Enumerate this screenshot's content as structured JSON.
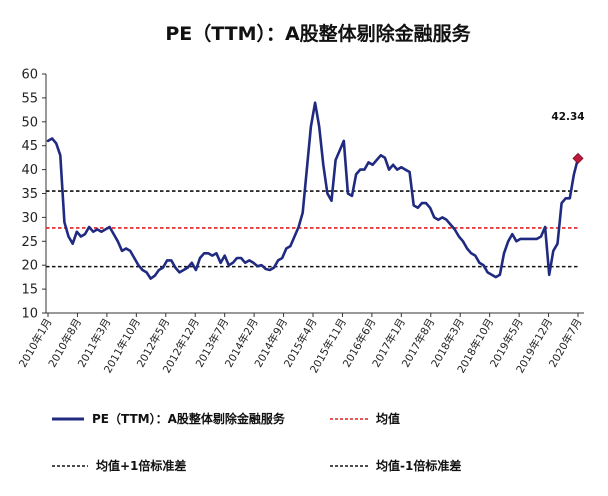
{
  "chart_data": {
    "type": "line",
    "title": "PE（TTM）：A股整体剔除金融服务",
    "xlabel": "",
    "ylabel": "",
    "ylim": [
      10,
      60
    ],
    "yticks": [
      "10",
      "15",
      "20",
      "25",
      "30",
      "35",
      "40",
      "45",
      "50",
      "55",
      "60"
    ],
    "xticks": [
      "2010年1月",
      "2010年8月",
      "2011年3月",
      "2011年10月",
      "2012年5月",
      "2012年12月",
      "2013年7月",
      "2014年2月",
      "2014年9月",
      "2015年4月",
      "2015年11月",
      "2016年6月",
      "2017年1月",
      "2017年8月",
      "2018年3月",
      "2018年10月",
      "2019年5月",
      "2019年12月",
      "2020年7月"
    ],
    "x_index_range": [
      0,
      126
    ],
    "grid": false,
    "legend_placement": "bottom",
    "series": [
      {
        "name": "PE（TTM）：A股整体剔除金融服务",
        "color": "#1f2a80",
        "points": [
          [
            0,
            46
          ],
          [
            1,
            46.5
          ],
          [
            2,
            45.5
          ],
          [
            3,
            43
          ],
          [
            4,
            29
          ],
          [
            5,
            26
          ],
          [
            6,
            24.5
          ],
          [
            7,
            27
          ],
          [
            8,
            26
          ],
          [
            9,
            26.5
          ],
          [
            10,
            28
          ],
          [
            11,
            27
          ],
          [
            12,
            27.5
          ],
          [
            13,
            27
          ],
          [
            14,
            27.5
          ],
          [
            15,
            28
          ],
          [
            16,
            26.5
          ],
          [
            17,
            25
          ],
          [
            18,
            23
          ],
          [
            19,
            23.5
          ],
          [
            20,
            23
          ],
          [
            21,
            21.5
          ],
          [
            22,
            20
          ],
          [
            23,
            19
          ],
          [
            24,
            18.5
          ],
          [
            25,
            17.2
          ],
          [
            26,
            17.8
          ],
          [
            27,
            19
          ],
          [
            28,
            19.5
          ],
          [
            29,
            21
          ],
          [
            30,
            21
          ],
          [
            31,
            19.5
          ],
          [
            32,
            18.5
          ],
          [
            33,
            19
          ],
          [
            34,
            19.5
          ],
          [
            35,
            20.5
          ],
          [
            36,
            19
          ],
          [
            37,
            21.5
          ],
          [
            38,
            22.5
          ],
          [
            39,
            22.5
          ],
          [
            40,
            22
          ],
          [
            41,
            22.5
          ],
          [
            42,
            20.5
          ],
          [
            43,
            22
          ],
          [
            44,
            20
          ],
          [
            45,
            20.5
          ],
          [
            46,
            21.5
          ],
          [
            47,
            21.5
          ],
          [
            48,
            20.5
          ],
          [
            49,
            21
          ],
          [
            50,
            20.5
          ],
          [
            51,
            19.8
          ],
          [
            52,
            20
          ],
          [
            53,
            19.2
          ],
          [
            54,
            19
          ],
          [
            55,
            19.5
          ],
          [
            56,
            21
          ],
          [
            57,
            21.5
          ],
          [
            58,
            23.5
          ],
          [
            59,
            24
          ],
          [
            60,
            26
          ],
          [
            61,
            28
          ],
          [
            62,
            31
          ],
          [
            63,
            40
          ],
          [
            64,
            49
          ],
          [
            65,
            54
          ],
          [
            66,
            49
          ],
          [
            67,
            41
          ],
          [
            68,
            35
          ],
          [
            69,
            33.5
          ],
          [
            70,
            42
          ],
          [
            71,
            44
          ],
          [
            72,
            46
          ],
          [
            73,
            35
          ],
          [
            74,
            34.5
          ],
          [
            75,
            39
          ],
          [
            76,
            40
          ],
          [
            77,
            40
          ],
          [
            78,
            41.5
          ],
          [
            79,
            41
          ],
          [
            80,
            42
          ],
          [
            81,
            43
          ],
          [
            82,
            42.5
          ],
          [
            83,
            40
          ],
          [
            84,
            41
          ],
          [
            85,
            40
          ],
          [
            86,
            40.5
          ],
          [
            87,
            40
          ],
          [
            88,
            39.5
          ],
          [
            89,
            32.5
          ],
          [
            90,
            32
          ],
          [
            91,
            33
          ],
          [
            92,
            33
          ],
          [
            93,
            32
          ],
          [
            94,
            30
          ],
          [
            95,
            29.5
          ],
          [
            96,
            30
          ],
          [
            97,
            29.5
          ],
          [
            98,
            28.5
          ],
          [
            99,
            27.5
          ],
          [
            100,
            26
          ],
          [
            101,
            25
          ],
          [
            102,
            23.5
          ],
          [
            103,
            22.5
          ],
          [
            104,
            22
          ],
          [
            105,
            20.5
          ],
          [
            106,
            20
          ],
          [
            107,
            18.5
          ],
          [
            108,
            18
          ],
          [
            109,
            17.5
          ],
          [
            110,
            18
          ],
          [
            111,
            22.5
          ],
          [
            112,
            25
          ],
          [
            113,
            26.5
          ],
          [
            114,
            25
          ],
          [
            115,
            25.5
          ],
          [
            116,
            25.5
          ],
          [
            117,
            25.5
          ],
          [
            118,
            25.5
          ],
          [
            119,
            25.5
          ],
          [
            120,
            26
          ],
          [
            121,
            28
          ],
          [
            122,
            18
          ],
          [
            123,
            23
          ],
          [
            124,
            24.5
          ],
          [
            125,
            33
          ],
          [
            126,
            34
          ],
          [
            127,
            34
          ],
          [
            128,
            39
          ],
          [
            129,
            42.34
          ]
        ]
      },
      {
        "name": "均值",
        "color": "#e02020",
        "style": "dashed",
        "value": 27.8
      },
      {
        "name": "均值+1倍标准差",
        "color": "#111111",
        "style": "dashed",
        "value": 35.5
      },
      {
        "name": "均值-1倍标准差",
        "color": "#111111",
        "style": "dashed",
        "value": 19.7
      }
    ],
    "annotations": [
      {
        "text": "42.34",
        "x": 129,
        "y": 42.34,
        "marker": "diamond",
        "marker_color": "#c0183c"
      }
    ]
  }
}
